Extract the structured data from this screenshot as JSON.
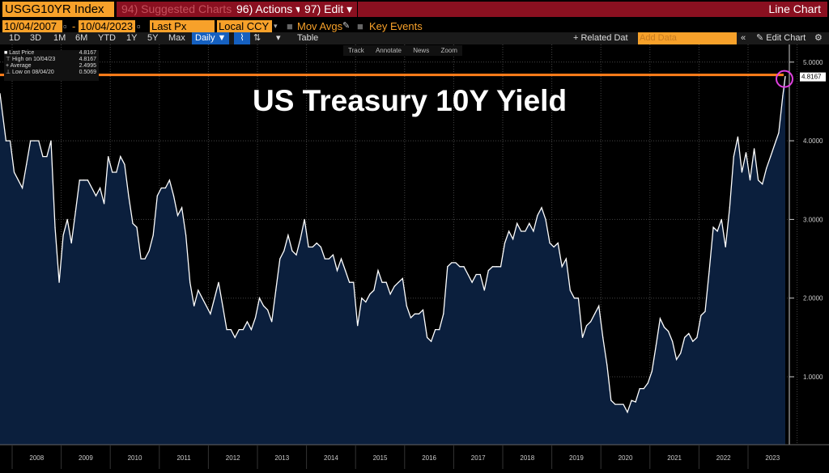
{
  "header": {
    "ticker": "USGG10YR Index",
    "suggested": "94) Suggested Charts",
    "actions": "96) Actions ▾",
    "edit": "97) Edit ▾",
    "chart_type": "Line Chart"
  },
  "controls": {
    "start_date": "10/04/2007",
    "end_date": "10/04/2023",
    "field": "Last Px",
    "currency": "Local CCY",
    "mov_avgs": "Mov Avgs",
    "key_events": "Key Events",
    "related": "+ Related Dat",
    "add_data_placeholder": "Add Data",
    "edit_chart": "Edit Chart"
  },
  "periods": [
    "1D",
    "3D",
    "1M",
    "6M",
    "YTD",
    "1Y",
    "5Y",
    "Max"
  ],
  "frequency": "Daily ▼",
  "table_label": "Table",
  "tools": [
    "Track",
    "Annotate",
    "News",
    "Zoom"
  ],
  "legend": [
    {
      "label": "Last Price",
      "value": "4.8167"
    },
    {
      "label": "High on 10/04/23",
      "value": "4.8167"
    },
    {
      "label": "Average",
      "value": "2.4995"
    },
    {
      "label": "Low on 08/04/20",
      "value": "0.5069"
    }
  ],
  "colors": {
    "line": "#ffffff",
    "fill": "#0b1f3d",
    "highlight": "#ff7f1a",
    "circle": "#e040e0",
    "bar": "#8a1020",
    "accent": "#f7a12a"
  },
  "chart_data": {
    "type": "area",
    "title": "US Treasury 10Y Yield",
    "last_value_label": "4.8167",
    "ylim": [
      0,
      5.2
    ],
    "yticks": [
      "1.0000",
      "2.0000",
      "3.0000",
      "4.0000",
      "5.0000"
    ],
    "xticks": [
      "2008",
      "2009",
      "2010",
      "2011",
      "2012",
      "2013",
      "2014",
      "2015",
      "2016",
      "2017",
      "2018",
      "2019",
      "2020",
      "2021",
      "2022",
      "2023"
    ],
    "x_start": "2007-10",
    "grid": true,
    "monthly_values": [
      4.6,
      4.0,
      4.0,
      3.6,
      3.5,
      3.4,
      3.7,
      4.0,
      4.0,
      4.0,
      3.8,
      3.8,
      4.0,
      2.9,
      2.2,
      2.8,
      3.0,
      2.7,
      3.1,
      3.5,
      3.5,
      3.5,
      3.4,
      3.3,
      3.4,
      3.2,
      3.8,
      3.6,
      3.6,
      3.8,
      3.7,
      3.3,
      2.95,
      2.9,
      2.5,
      2.5,
      2.6,
      2.8,
      3.3,
      3.4,
      3.4,
      3.5,
      3.3,
      3.05,
      3.15,
      2.8,
      2.2,
      1.9,
      2.1,
      2.0,
      1.9,
      1.8,
      2.0,
      2.2,
      1.9,
      1.6,
      1.6,
      1.5,
      1.6,
      1.6,
      1.7,
      1.6,
      1.75,
      2.0,
      1.9,
      1.85,
      1.7,
      2.1,
      2.5,
      2.6,
      2.8,
      2.6,
      2.55,
      2.75,
      3.0,
      2.65,
      2.65,
      2.7,
      2.65,
      2.5,
      2.5,
      2.55,
      2.35,
      2.5,
      2.35,
      2.2,
      2.2,
      1.65,
      2.0,
      1.95,
      2.05,
      2.1,
      2.35,
      2.2,
      2.2,
      2.05,
      2.15,
      2.2,
      2.25,
      1.9,
      1.75,
      1.8,
      1.8,
      1.85,
      1.5,
      1.45,
      1.6,
      1.6,
      1.8,
      2.4,
      2.45,
      2.45,
      2.4,
      2.4,
      2.3,
      2.2,
      2.3,
      2.3,
      2.1,
      2.35,
      2.4,
      2.4,
      2.4,
      2.7,
      2.85,
      2.75,
      2.95,
      2.85,
      2.85,
      2.95,
      2.85,
      3.05,
      3.15,
      3.0,
      2.7,
      2.65,
      2.7,
      2.4,
      2.5,
      2.1,
      2.0,
      2.0,
      1.5,
      1.65,
      1.7,
      1.8,
      1.9,
      1.5,
      1.15,
      0.7,
      0.65,
      0.65,
      0.65,
      0.55,
      0.7,
      0.68,
      0.85,
      0.85,
      0.92,
      1.07,
      1.4,
      1.74,
      1.63,
      1.58,
      1.45,
      1.22,
      1.3,
      1.5,
      1.55,
      1.45,
      1.5,
      1.78,
      1.83,
      2.34,
      2.9,
      2.85,
      3.0,
      2.65,
      3.15,
      3.8,
      4.05,
      3.6,
      3.85,
      3.5,
      3.9,
      3.5,
      3.45,
      3.65,
      3.8,
      3.95,
      4.1,
      4.57,
      4.8167
    ]
  }
}
